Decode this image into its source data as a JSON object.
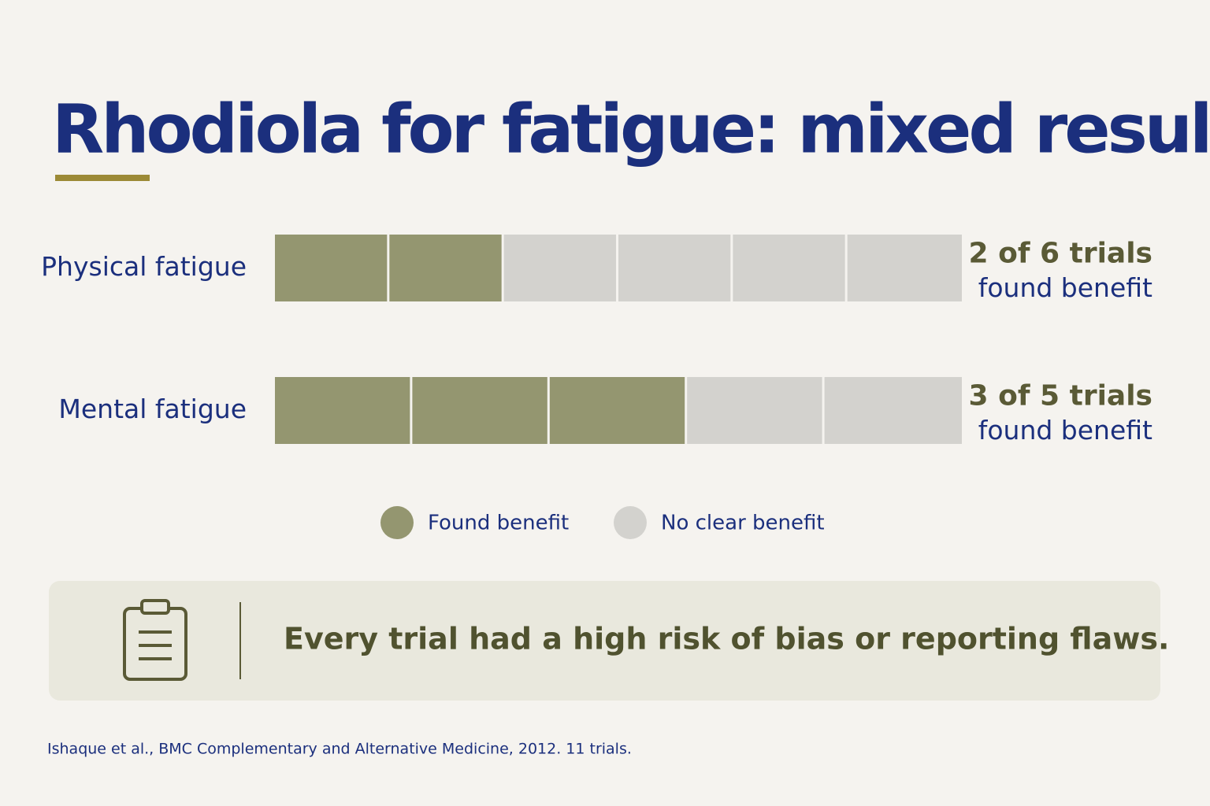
{
  "chart_data": {
    "type": "unit",
    "title": "Rhodiola for fatigue: mixed results",
    "categories": [
      "Physical fatigue",
      "Mental fatigue"
    ],
    "series": [
      {
        "name": "Found benefit",
        "color": "#949670",
        "values": [
          2,
          3
        ]
      },
      {
        "name": "No clear benefit",
        "color": "#d3d2ce",
        "values": [
          4,
          2
        ]
      }
    ],
    "annotations": [
      {
        "text": "2 of 6 trials",
        "subtext": "found benefit"
      },
      {
        "text": "3 of 5 trials",
        "subtext": "found benefit"
      }
    ],
    "note": "Every trial had a high risk of bias or reporting flaws.",
    "source": "Ishaque et al., BMC Complementary and Alternative Medicine, 2012.  11 trials."
  }
}
